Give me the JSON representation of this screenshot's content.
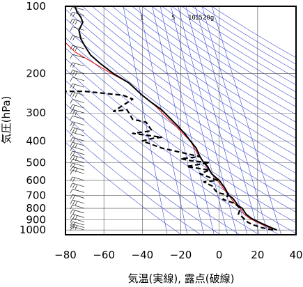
{
  "chart_data": {
    "type": "line",
    "title": "",
    "xlabel": "気温(実線), 露点(破線)",
    "ylabel": "気圧(hPa)",
    "xlim": [
      -80,
      40
    ],
    "ylim": [
      1050,
      100
    ],
    "y_scale": "log",
    "x_ticks": [
      -80,
      -60,
      -40,
      -20,
      0,
      20,
      40
    ],
    "x_tick_labels": [
      "−80",
      "−60",
      "−40",
      "−20",
      "0",
      "20",
      "40"
    ],
    "y_ticks": [
      100,
      200,
      300,
      400,
      500,
      600,
      700,
      800,
      900,
      1000
    ],
    "y_tick_labels": [
      "100",
      "200",
      "300",
      "400",
      "500",
      "600",
      "700",
      "800",
      "900",
      "1000"
    ],
    "mixing_ratio_labels": [
      "1",
      "5",
      "10",
      "15",
      "20g"
    ],
    "series": [
      {
        "style": "solid",
        "color": "#000000",
        "points": [
          [
            30,
            1000
          ],
          [
            27,
            975
          ],
          [
            24,
            950
          ],
          [
            21,
            925
          ],
          [
            17,
            890
          ],
          [
            14,
            850
          ],
          [
            12,
            800
          ],
          [
            10,
            780
          ],
          [
            7,
            720
          ],
          [
            5,
            700
          ],
          [
            3,
            650
          ],
          [
            0,
            600
          ],
          [
            -2,
            580
          ],
          [
            -4,
            560
          ],
          [
            -6,
            520
          ],
          [
            -8,
            500
          ],
          [
            -10,
            470
          ],
          [
            -12,
            430
          ],
          [
            -15,
            400
          ],
          [
            -18,
            370
          ],
          [
            -22,
            340
          ],
          [
            -25,
            320
          ],
          [
            -30,
            290
          ],
          [
            -35,
            270
          ],
          [
            -40,
            250
          ],
          [
            -47,
            220
          ],
          [
            -55,
            200
          ],
          [
            -62,
            180
          ],
          [
            -67,
            165
          ],
          [
            -70,
            150
          ],
          [
            -72,
            140
          ],
          [
            -73,
            128
          ],
          [
            -71,
            118
          ],
          [
            -72,
            112
          ],
          [
            -74,
            106
          ],
          [
            -75,
            100
          ]
        ]
      },
      {
        "style": "dashed",
        "color": "#000000",
        "points": [
          [
            28,
            1000
          ],
          [
            22,
            975
          ],
          [
            18,
            950
          ],
          [
            15,
            925
          ],
          [
            12,
            875
          ],
          [
            10,
            850
          ],
          [
            11,
            800
          ],
          [
            8,
            760
          ],
          [
            2,
            730
          ],
          [
            5,
            700
          ],
          [
            -1,
            680
          ],
          [
            -3,
            650
          ],
          [
            -3,
            640
          ],
          [
            -8,
            610
          ],
          [
            -1,
            600
          ],
          [
            -10,
            560
          ],
          [
            -5,
            540
          ],
          [
            -17,
            520
          ],
          [
            -5,
            500
          ],
          [
            -15,
            490
          ],
          [
            -20,
            480
          ],
          [
            -10,
            470
          ],
          [
            -30,
            430
          ],
          [
            -40,
            400
          ],
          [
            -35,
            390
          ],
          [
            -30,
            385
          ],
          [
            -45,
            370
          ],
          [
            -35,
            360
          ],
          [
            -38,
            330
          ],
          [
            -45,
            320
          ],
          [
            -48,
            290
          ],
          [
            -55,
            295
          ],
          [
            -45,
            260
          ],
          [
            -50,
            250
          ],
          [
            -70,
            240
          ],
          [
            -80,
            240
          ]
        ]
      },
      {
        "style": "solid",
        "color": "#e41a1c",
        "points": [
          [
            30,
            1000
          ],
          [
            26,
            975
          ],
          [
            23,
            950
          ],
          [
            20,
            925
          ],
          [
            16,
            890
          ],
          [
            13,
            850
          ],
          [
            11,
            800
          ],
          [
            8,
            760
          ],
          [
            5,
            700
          ],
          [
            2,
            650
          ],
          [
            -1,
            600
          ],
          [
            -4,
            560
          ],
          [
            -8,
            500
          ],
          [
            -11,
            460
          ],
          [
            -15,
            400
          ],
          [
            -19,
            370
          ],
          [
            -23,
            340
          ],
          [
            -28,
            310
          ],
          [
            -33,
            280
          ],
          [
            -40,
            250
          ],
          [
            -47,
            220
          ],
          [
            -56,
            200
          ],
          [
            -65,
            180
          ],
          [
            -75,
            160
          ],
          [
            -82,
            140
          ]
        ]
      }
    ]
  }
}
